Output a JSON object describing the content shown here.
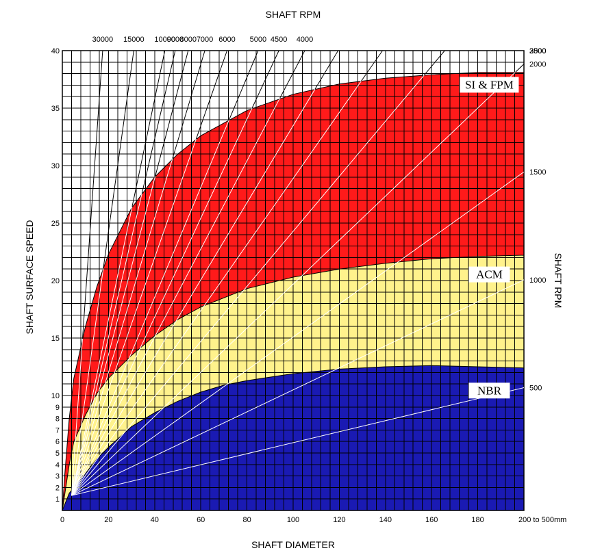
{
  "chart_data": {
    "type": "area",
    "title": "SHAFT RPM",
    "xlabel": "SHAFT DIAMETER",
    "ylabel": "SHAFT SURFACE SPEED",
    "y2label": "SHAFT RPM",
    "xlim": [
      0,
      200
    ],
    "ylim": [
      0,
      40
    ],
    "x_ticks": [
      "0",
      "20",
      "40",
      "60",
      "80",
      "100",
      "120",
      "140",
      "160",
      "180",
      "200 to 500mm"
    ],
    "x_tick_values": [
      0,
      20,
      40,
      60,
      80,
      100,
      120,
      140,
      160,
      180,
      200
    ],
    "y_ticks": [
      "1",
      "2",
      "3",
      "4",
      "5",
      "6",
      "7",
      "8",
      "9",
      "10",
      "15",
      "20",
      "25",
      "30",
      "35",
      "40"
    ],
    "y_tick_values": [
      1,
      2,
      3,
      4,
      5,
      6,
      7,
      8,
      9,
      10,
      15,
      20,
      25,
      30,
      35,
      40
    ],
    "grid": true,
    "series": [
      {
        "name": "SI & FPM",
        "color": "#ff1a1a",
        "x": [
          0,
          1,
          3,
          5,
          10,
          15,
          20,
          30,
          40,
          50,
          60,
          80,
          100,
          120,
          140,
          160,
          180,
          200
        ],
        "y": [
          0,
          3,
          8,
          11.5,
          16,
          19.5,
          22.3,
          26.3,
          29,
          31,
          32.6,
          34.8,
          36.2,
          37.1,
          37.6,
          37.9,
          38.1,
          38.1
        ]
      },
      {
        "name": "ACM",
        "color": "#fff28c",
        "x": [
          0,
          3,
          5,
          10,
          15,
          20,
          30,
          40,
          50,
          60,
          80,
          100,
          120,
          140,
          160,
          180,
          200
        ],
        "y": [
          0,
          4,
          6,
          8.3,
          10.2,
          11.5,
          13.5,
          15.2,
          16.6,
          17.7,
          19.3,
          20.3,
          21,
          21.5,
          21.9,
          22.1,
          22.2
        ]
      },
      {
        "name": "NBR",
        "color": "#1a1ab3",
        "x": [
          0,
          3,
          5,
          10,
          15,
          20,
          30,
          40,
          50,
          60,
          70,
          80,
          100,
          120,
          140,
          160,
          180,
          200
        ],
        "y": [
          0,
          1.5,
          2,
          3.2,
          4.5,
          5.5,
          7.3,
          8.5,
          9.5,
          10.3,
          10.9,
          11.3,
          11.9,
          12.3,
          12.5,
          12.6,
          12.5,
          12.4
        ]
      }
    ],
    "rpm_lines": [
      {
        "label": "30000",
        "rpm": 30000,
        "side": "top"
      },
      {
        "label": "15000",
        "rpm": 15000,
        "side": "top"
      },
      {
        "label": "10000",
        "rpm": 10000,
        "side": "top"
      },
      {
        "label": "9000",
        "rpm": 9000,
        "side": "top"
      },
      {
        "label": "8000",
        "rpm": 8000,
        "side": "top"
      },
      {
        "label": "7000",
        "rpm": 7000,
        "side": "top"
      },
      {
        "label": "6000",
        "rpm": 6000,
        "side": "top"
      },
      {
        "label": "5000",
        "rpm": 5000,
        "side": "top"
      },
      {
        "label": "4500",
        "rpm": 4500,
        "side": "top"
      },
      {
        "label": "4000",
        "rpm": 4000,
        "side": "top"
      },
      {
        "label": "3500",
        "rpm": 3500,
        "side": "right"
      },
      {
        "label": "3000",
        "rpm": 3000,
        "side": "right"
      },
      {
        "label": "2500",
        "rpm": 2500,
        "side": "right"
      },
      {
        "label": "2000",
        "rpm": 2000,
        "side": "right"
      },
      {
        "label": "1500",
        "rpm": 1500,
        "side": "right"
      },
      {
        "label": "1000",
        "rpm": 1000,
        "side": "right"
      },
      {
        "label": "500",
        "rpm": 500,
        "side": "right"
      }
    ],
    "line_colors": {
      "inside_band": "#ffffff",
      "outside_band": "#000000"
    }
  }
}
